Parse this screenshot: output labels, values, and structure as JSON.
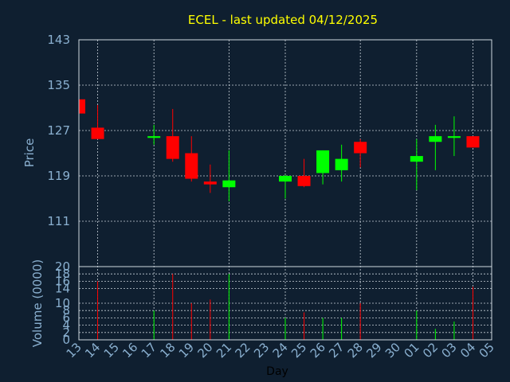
{
  "chart_data": {
    "type": "candlestick",
    "title": "ECEL - last updated 04/12/2025",
    "xlabel": "Day",
    "ylabel_price": "Price",
    "ylabel_volume": "Volume (0000)",
    "price_ylim": [
      103,
      143
    ],
    "price_ticks": [
      111,
      119,
      127,
      135,
      143
    ],
    "volume_ylim": [
      0,
      20
    ],
    "volume_ticks": [
      0,
      2,
      4,
      6,
      8,
      10,
      14,
      16,
      18,
      20
    ],
    "x_tick_labels": [
      "13",
      "14",
      "15",
      "16",
      "17",
      "18",
      "19",
      "20",
      "21",
      "22",
      "23",
      "24",
      "25",
      "26",
      "27",
      "28",
      "29",
      "30",
      "01",
      "02",
      "03",
      "04",
      "05"
    ],
    "x_gridlines_at": [
      "14",
      "17",
      "21",
      "24",
      "28",
      "01",
      "04"
    ],
    "colors": {
      "up": "#00ff00",
      "down": "#ff0000",
      "title": "#ffff00",
      "tick": "#8ab0d0",
      "background": "#0f1f30"
    },
    "candles": [
      {
        "day": "13",
        "open": 132.5,
        "high": 132.5,
        "low": 130.0,
        "close": 130.0,
        "volume": 0
      },
      {
        "day": "14",
        "open": 127.5,
        "high": 131.5,
        "low": 125.5,
        "close": 125.5,
        "volume": 16
      },
      {
        "day": "17",
        "open": 125.7,
        "high": 128.0,
        "low": 124.5,
        "close": 126.0,
        "volume": 8
      },
      {
        "day": "18",
        "open": 126.0,
        "high": 130.8,
        "low": 121.5,
        "close": 122.0,
        "volume": 18
      },
      {
        "day": "19",
        "open": 123.0,
        "high": 126.0,
        "low": 118.0,
        "close": 118.5,
        "volume": 10
      },
      {
        "day": "20",
        "open": 118.0,
        "high": 121.0,
        "low": 116.0,
        "close": 117.5,
        "volume": 11
      },
      {
        "day": "21",
        "open": 117.0,
        "high": 123.5,
        "low": 114.5,
        "close": 118.2,
        "volume": 18
      },
      {
        "day": "24",
        "open": 118.0,
        "high": 119.2,
        "low": 115.0,
        "close": 119.0,
        "volume": 6
      },
      {
        "day": "25",
        "open": 119.0,
        "high": 122.0,
        "low": 117.0,
        "close": 117.2,
        "volume": 7.5
      },
      {
        "day": "26",
        "open": 119.5,
        "high": 123.5,
        "low": 117.5,
        "close": 123.5,
        "volume": 6
      },
      {
        "day": "27",
        "open": 120.0,
        "high": 124.5,
        "low": 118.0,
        "close": 122.0,
        "volume": 6
      },
      {
        "day": "28",
        "open": 125.0,
        "high": 125.5,
        "low": 120.5,
        "close": 123.0,
        "volume": 10
      },
      {
        "day": "01",
        "open": 121.5,
        "high": 125.5,
        "low": 116.5,
        "close": 122.5,
        "volume": 8
      },
      {
        "day": "02",
        "open": 125.0,
        "high": 128.0,
        "low": 120.0,
        "close": 126.0,
        "volume": 3
      },
      {
        "day": "03",
        "open": 125.7,
        "high": 129.5,
        "low": 122.5,
        "close": 126.0,
        "volume": 5
      },
      {
        "day": "04",
        "open": 126.0,
        "high": 126.0,
        "low": 124.0,
        "close": 124.0,
        "volume": 14.5
      }
    ]
  }
}
